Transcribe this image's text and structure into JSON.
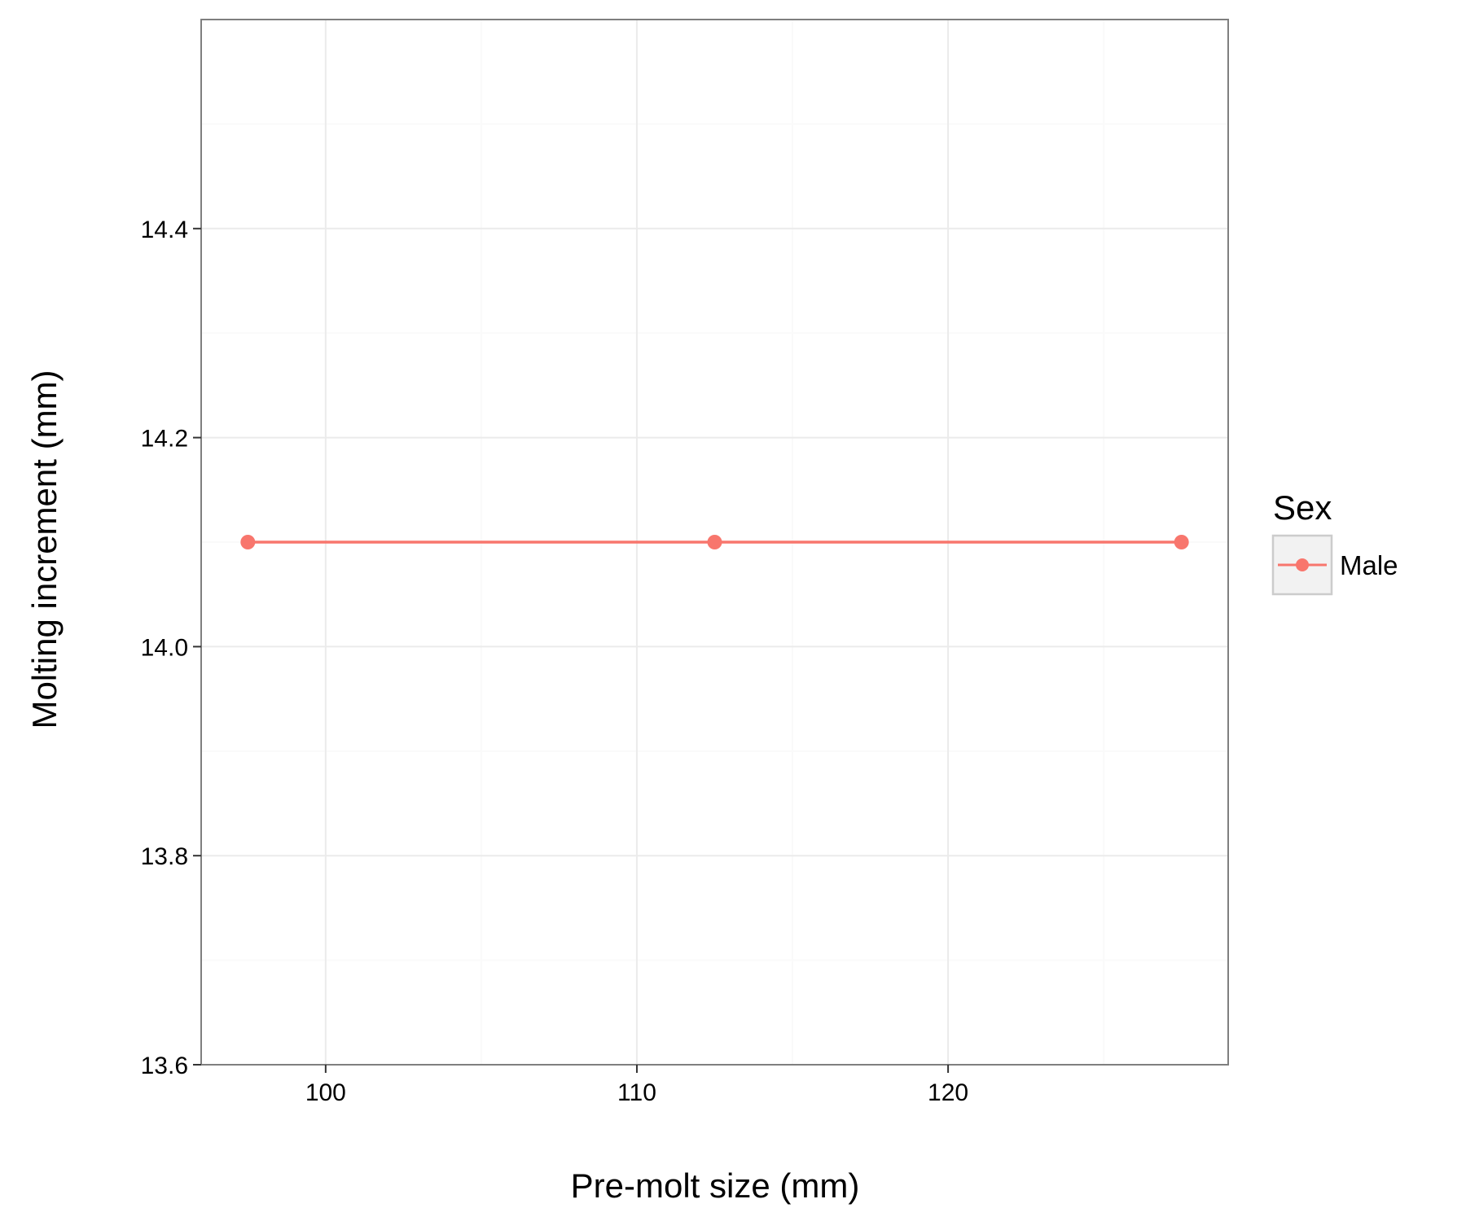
{
  "chart_data": {
    "type": "line",
    "xlabel": "Pre-molt size (mm)",
    "ylabel": "Molting increment (mm)",
    "xlim": [
      96,
      129
    ],
    "ylim": [
      13.6,
      14.6
    ],
    "xticks": [
      100,
      110,
      120
    ],
    "yticks": [
      13.6,
      13.8,
      14.0,
      14.2,
      14.4
    ],
    "xtick_labels": [
      "100",
      "110",
      "120"
    ],
    "ytick_labels": [
      "13.6",
      "13.8",
      "14.0",
      "14.2",
      "14.4"
    ],
    "grid": true,
    "legend": {
      "title": "Sex",
      "position": "right",
      "entries": [
        "Male"
      ]
    },
    "series": [
      {
        "name": "Male",
        "color": "#F8766D",
        "x": [
          97.5,
          112.5,
          127.5
        ],
        "y": [
          14.1,
          14.1,
          14.1
        ]
      }
    ]
  }
}
